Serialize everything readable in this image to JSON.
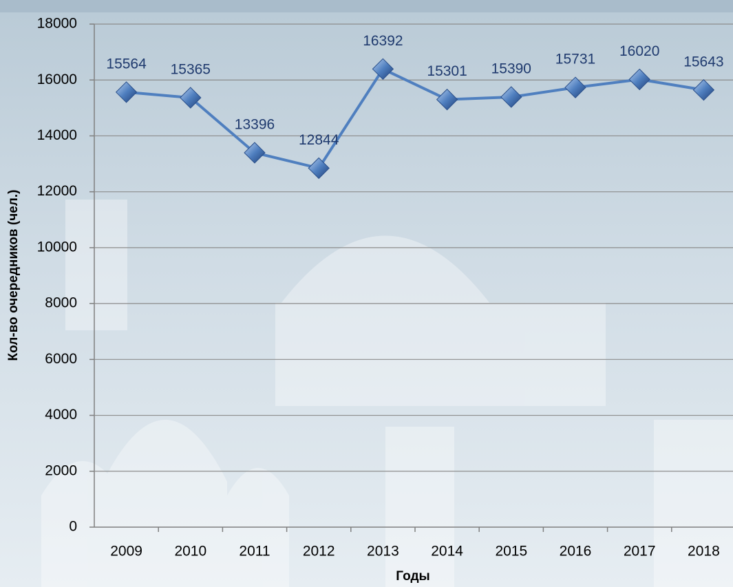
{
  "chart_data": {
    "type": "line",
    "x_label": "Годы",
    "y_label": "Кол-во очередников (чел.)",
    "categories": [
      "2009",
      "2010",
      "2011",
      "2012",
      "2013",
      "2014",
      "2015",
      "2016",
      "2017",
      "2018"
    ],
    "values": [
      15564,
      15365,
      13396,
      12844,
      16392,
      15301,
      15390,
      15731,
      16020,
      15643
    ],
    "color": "#4f7fbf",
    "ylim": [
      0,
      18000
    ],
    "yticks": [
      0,
      2000,
      4000,
      6000,
      8000,
      10000,
      12000,
      14000,
      16000,
      18000
    ],
    "grid": true
  }
}
